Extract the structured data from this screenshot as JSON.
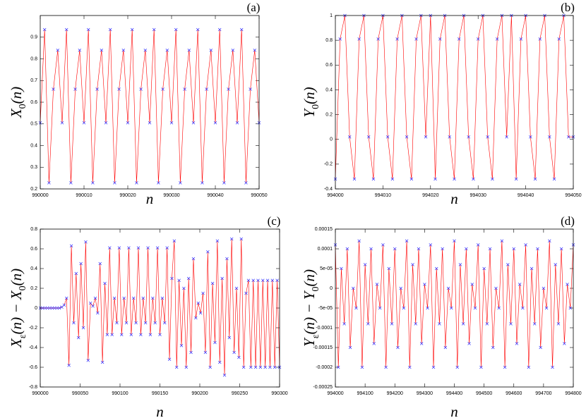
{
  "chart_data": [
    {
      "type": "line",
      "label": "(a)",
      "xlabel": "n",
      "ylabel": [
        "X",
        "0",
        "(n)"
      ],
      "line_color": "#ff0000",
      "marker_color": "#3030ff",
      "xlim": [
        990000,
        990050
      ],
      "xticks": [
        990000,
        990010,
        990020,
        990030,
        990040,
        990050
      ],
      "ylim": [
        0.2,
        1
      ],
      "yticks": [
        0.2,
        0.3,
        0.4,
        0.5,
        0.6,
        0.7,
        0.8,
        0.9
      ],
      "x": [
        990000,
        990001,
        990002,
        990003,
        990004,
        990005,
        990006,
        990007,
        990008,
        990009,
        990010,
        990011,
        990012,
        990013,
        990014,
        990015,
        990016,
        990017,
        990018,
        990019,
        990020,
        990021,
        990022,
        990023,
        990024,
        990025,
        990026,
        990027,
        990028,
        990029,
        990030,
        990031,
        990032,
        990033,
        990034,
        990035,
        990036,
        990037,
        990038,
        990039,
        990040,
        990041,
        990042,
        990043,
        990044,
        990045,
        990046,
        990047,
        990048,
        990049,
        990050
      ],
      "values": [
        0.505,
        0.935,
        0.228,
        0.66,
        0.84,
        0.505,
        0.935,
        0.228,
        0.66,
        0.84,
        0.505,
        0.935,
        0.228,
        0.66,
        0.84,
        0.505,
        0.935,
        0.228,
        0.66,
        0.84,
        0.505,
        0.935,
        0.228,
        0.66,
        0.84,
        0.505,
        0.935,
        0.228,
        0.66,
        0.84,
        0.505,
        0.935,
        0.228,
        0.66,
        0.84,
        0.505,
        0.935,
        0.228,
        0.66,
        0.84,
        0.505,
        0.935,
        0.228,
        0.66,
        0.84,
        0.505,
        0.935,
        0.228,
        0.66,
        0.84,
        0.505
      ]
    },
    {
      "type": "line",
      "label": "(b)",
      "xlabel": "n",
      "ylabel": [
        "Y",
        "0",
        "(n)"
      ],
      "line_color": "#ff0000",
      "marker_color": "#3030ff",
      "xlim": [
        994000,
        994050
      ],
      "xticks": [
        994000,
        994010,
        994020,
        994030,
        994040,
        994050
      ],
      "ylim": [
        -0.4,
        1
      ],
      "yticks": [
        -0.4,
        -0.2,
        0,
        0.2,
        0.4,
        0.6,
        0.8,
        1
      ],
      "x": [
        994000,
        994001,
        994002,
        994003,
        994004,
        994005,
        994006,
        994007,
        994008,
        994009,
        994010,
        994011,
        994012,
        994013,
        994014,
        994015,
        994016,
        994017,
        994018,
        994019,
        994020,
        994021,
        994022,
        994023,
        994024,
        994025,
        994026,
        994027,
        994028,
        994029,
        994030,
        994031,
        994032,
        994033,
        994034,
        994035,
        994036,
        994037,
        994038,
        994039,
        994040,
        994041,
        994042,
        994043,
        994044,
        994045,
        994046,
        994047,
        994048,
        994049,
        994050
      ],
      "values": [
        -0.32,
        0.81,
        1,
        0.02,
        -0.32,
        0.81,
        1,
        0.02,
        -0.32,
        0.81,
        1,
        0.02,
        -0.32,
        0.81,
        1,
        0.02,
        -0.32,
        0.81,
        1,
        0.02,
        1,
        -0.32,
        0.81,
        1,
        0.02,
        -0.32,
        0.81,
        1,
        0.02,
        -0.32,
        0.81,
        1,
        0.02,
        -0.32,
        0.81,
        1,
        0.02,
        1,
        -0.32,
        0.81,
        1,
        0.02,
        -0.32,
        0.81,
        1,
        0.02,
        -0.32,
        0.81,
        1,
        0.02,
        0.02
      ]
    },
    {
      "type": "line",
      "label": "(c)",
      "xlabel": "n",
      "ylabel": [
        "X",
        "ε",
        "(n) − X",
        "0",
        "(n)"
      ],
      "line_color": "#ff0000",
      "marker_color": "#3030ff",
      "xlim": [
        990000,
        990300
      ],
      "xticks": [
        990000,
        990050,
        990100,
        990150,
        990200,
        990250,
        990300
      ],
      "ylim": [
        -0.8,
        0.8
      ],
      "yticks": [
        -0.8,
        -0.6,
        -0.4,
        -0.2,
        0,
        0.2,
        0.4,
        0.6,
        0.8
      ],
      "x": [
        990000,
        990003,
        990006,
        990009,
        990012,
        990015,
        990018,
        990021,
        990024,
        990027,
        990030,
        990033,
        990036,
        990039,
        990042,
        990045,
        990048,
        990051,
        990054,
        990057,
        990060,
        990063,
        990066,
        990069,
        990072,
        990075,
        990078,
        990081,
        990084,
        990087,
        990090,
        990093,
        990096,
        990099,
        990102,
        990105,
        990108,
        990111,
        990114,
        990117,
        990120,
        990123,
        990126,
        990129,
        990132,
        990135,
        990138,
        990141,
        990144,
        990147,
        990150,
        990153,
        990156,
        990159,
        990162,
        990165,
        990168,
        990171,
        990174,
        990177,
        990180,
        990183,
        990186,
        990189,
        990192,
        990195,
        990198,
        990201,
        990204,
        990207,
        990210,
        990213,
        990216,
        990219,
        990222,
        990225,
        990228,
        990231,
        990234,
        990237,
        990240,
        990243,
        990246,
        990249,
        990252,
        990255,
        990258,
        990261,
        990264,
        990267,
        990270,
        990273,
        990276,
        990279,
        990282,
        990285,
        990288,
        990291,
        990294,
        990297,
        990300
      ],
      "values": [
        0,
        0,
        0,
        0,
        0,
        0,
        0,
        0,
        0,
        0.01,
        0.03,
        0.1,
        -0.58,
        0.63,
        -0.15,
        0.35,
        -0.3,
        0.45,
        -0.2,
        0.67,
        -0.53,
        0.05,
        0.02,
        0.1,
        -0.05,
        0.45,
        -0.55,
        0.25,
        -0.27,
        0.61,
        -0.27,
        0.1,
        -0.15,
        0.61,
        -0.27,
        0.1,
        -0.15,
        0.61,
        -0.27,
        0.1,
        -0.15,
        0.61,
        -0.27,
        0.1,
        -0.15,
        0.61,
        -0.27,
        0.1,
        -0.15,
        0.61,
        -0.27,
        0.1,
        -0.15,
        0.61,
        -0.52,
        0.3,
        0.68,
        -0.6,
        0.28,
        -0.38,
        0.2,
        -0.6,
        0.3,
        -0.45,
        0.5,
        -0.1,
        0.05,
        -0.05,
        0.15,
        -0.45,
        0.57,
        -0.6,
        0.25,
        -0.35,
        0.68,
        -0.55,
        0.3,
        -0.68,
        0.5,
        -0.3,
        0.7,
        -0.45,
        0.2,
        -0.5,
        0.7,
        -0.6,
        0.15,
        0.28,
        -0.6,
        0.28,
        -0.6,
        0.28,
        -0.6,
        0.28,
        -0.6,
        0.28,
        -0.6,
        0.28,
        -0.6,
        0.28,
        -0.6
      ]
    },
    {
      "type": "line",
      "label": "(d)",
      "xlabel": "n",
      "ylabel": [
        "Y",
        "ε",
        "(n) − Y",
        "0",
        "(n)"
      ],
      "line_color": "#ff0000",
      "marker_color": "#3030ff",
      "xlim": [
        994000,
        994800
      ],
      "xticks": [
        994000,
        994100,
        994200,
        994300,
        994400,
        994500,
        994600,
        994700,
        994800
      ],
      "ylim": [
        -0.00025,
        0.00015
      ],
      "yticks": [
        -0.00025,
        -0.0002,
        -0.00015,
        -0.0001,
        {
          "value": -5e-05,
          "label": "-5e-05"
        },
        0,
        {
          "value": 5e-05,
          "label": "5e-05"
        },
        0.0001,
        0.00015
      ],
      "x": [
        994000,
        994010,
        994020,
        994030,
        994040,
        994050,
        994060,
        994070,
        994080,
        994090,
        994100,
        994110,
        994120,
        994130,
        994140,
        994150,
        994160,
        994170,
        994180,
        994190,
        994200,
        994210,
        994220,
        994230,
        994240,
        994250,
        994260,
        994270,
        994280,
        994290,
        994300,
        994310,
        994320,
        994330,
        994340,
        994350,
        994360,
        994370,
        994380,
        994390,
        994400,
        994410,
        994420,
        994430,
        994440,
        994450,
        994460,
        994470,
        994480,
        994490,
        994500,
        994510,
        994520,
        994530,
        994540,
        994550,
        994560,
        994570,
        994580,
        994590,
        994600,
        994610,
        994620,
        994630,
        994640,
        994650,
        994660,
        994670,
        994680,
        994690,
        994700,
        994710,
        994720,
        994730,
        994740,
        994750,
        994760,
        994770,
        994780,
        994790,
        994800
      ],
      "values": [
        0.00011,
        -0.0002,
        5e-05,
        -9e-05,
        0.0001,
        -0.00015,
        0,
        -5e-05,
        0.00012,
        -0.0002,
        6e-05,
        -9e-05,
        0.0001,
        -0.00014,
        1e-05,
        -5e-05,
        0.00011,
        -0.0002,
        5e-05,
        -9e-05,
        0.0001,
        -0.00015,
        0,
        -5e-05,
        0.00012,
        -0.0002,
        6e-05,
        -9e-05,
        0.0001,
        -0.00014,
        1e-05,
        -5e-05,
        0.00011,
        -0.0002,
        5e-05,
        -9e-05,
        0.0001,
        -0.00015,
        0,
        -5e-05,
        0.00012,
        -0.0002,
        6e-05,
        -9e-05,
        0.0001,
        -0.00014,
        1e-05,
        -5e-05,
        0.00011,
        -0.0002,
        5e-05,
        -9e-05,
        0.0001,
        -0.00015,
        0,
        -5e-05,
        0.00012,
        -0.0002,
        6e-05,
        -9e-05,
        0.0001,
        -0.00014,
        1e-05,
        -5e-05,
        0.00011,
        -0.0002,
        5e-05,
        -9e-05,
        0.0001,
        -0.00015,
        0,
        -5e-05,
        0.00012,
        -0.0002,
        6e-05,
        -9e-05,
        0.0001,
        -0.00014,
        1e-05,
        -5e-05,
        0.00011
      ]
    }
  ]
}
